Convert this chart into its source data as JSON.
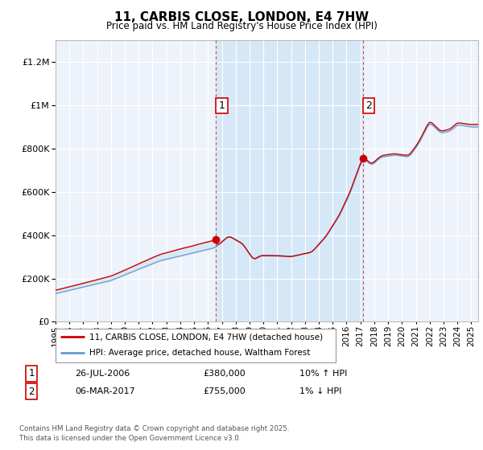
{
  "title": "11, CARBIS CLOSE, LONDON, E4 7HW",
  "subtitle": "Price paid vs. HM Land Registry's House Price Index (HPI)",
  "ylim": [
    0,
    1300000
  ],
  "yticks": [
    0,
    200000,
    400000,
    600000,
    800000,
    1000000,
    1200000
  ],
  "ytick_labels": [
    "£0",
    "£200K",
    "£400K",
    "£600K",
    "£800K",
    "£1M",
    "£1.2M"
  ],
  "background_color": "#ffffff",
  "plot_bg_color": "#eef3fb",
  "grid_color": "#ffffff",
  "shade_color": "#d6e8f7",
  "line1_color": "#cc0000",
  "line2_color": "#6699cc",
  "legend1": "11, CARBIS CLOSE, LONDON, E4 7HW (detached house)",
  "legend2": "HPI: Average price, detached house, Waltham Forest",
  "annotation1_date": "26-JUL-2006",
  "annotation1_price": "£380,000",
  "annotation1_hpi": "10% ↑ HPI",
  "annotation2_date": "06-MAR-2017",
  "annotation2_price": "£755,000",
  "annotation2_hpi": "1% ↓ HPI",
  "footer": "Contains HM Land Registry data © Crown copyright and database right 2025.\nThis data is licensed under the Open Government Licence v3.0.",
  "xlim_start": 1995.0,
  "xlim_end": 2025.5,
  "purchase1_x": 2006.57,
  "purchase1_y": 380000,
  "purchase2_x": 2017.18,
  "purchase2_y": 755000
}
